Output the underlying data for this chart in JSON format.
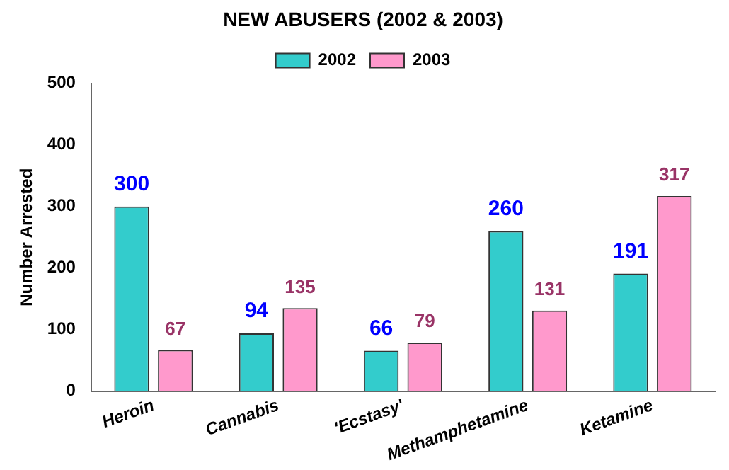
{
  "chart_data": {
    "type": "bar",
    "title": "NEW ABUSERS (2002 & 2003)",
    "ylabel": "Number Arrested",
    "categories": [
      "Heroin",
      "Cannabis",
      "'Ecstasy'",
      "Methamphetamine",
      "Ketamine"
    ],
    "series": [
      {
        "name": "2002",
        "color": "#33cccc",
        "values": [
          300,
          94,
          66,
          260,
          191
        ]
      },
      {
        "name": "2003",
        "color": "#ff99cc",
        "values": [
          67,
          135,
          79,
          131,
          317
        ]
      }
    ],
    "ylim": [
      0,
      500
    ],
    "yticks": [
      0,
      100,
      200,
      300,
      400,
      500
    ],
    "grid": false,
    "legend": "top",
    "data_labels": true
  }
}
